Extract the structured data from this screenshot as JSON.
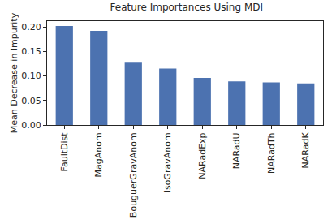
{
  "chart_data": {
    "type": "bar",
    "title": "Feature Importances Using MDI",
    "y_label": "Mean Decrease in Impurity",
    "categories": [
      "FaultDist",
      "MagAnom",
      "BouguerGravAnom",
      "IsoGravAnom",
      "NARadExp",
      "NARadU",
      "NARadTh",
      "NARadK"
    ],
    "values": [
      0.202,
      0.192,
      0.127,
      0.115,
      0.096,
      0.089,
      0.087,
      0.085
    ],
    "color": "#4c72b0",
    "ylim": [
      0,
      0.212
    ],
    "yticks": [
      {
        "value": 0,
        "label": "0.00"
      },
      {
        "value": 0.05,
        "label": "0.05"
      },
      {
        "value": 0.1,
        "label": "0.10"
      },
      {
        "value": 0.15,
        "label": "0.15"
      },
      {
        "value": 0.2,
        "label": "0.20"
      }
    ],
    "grid": false
  }
}
